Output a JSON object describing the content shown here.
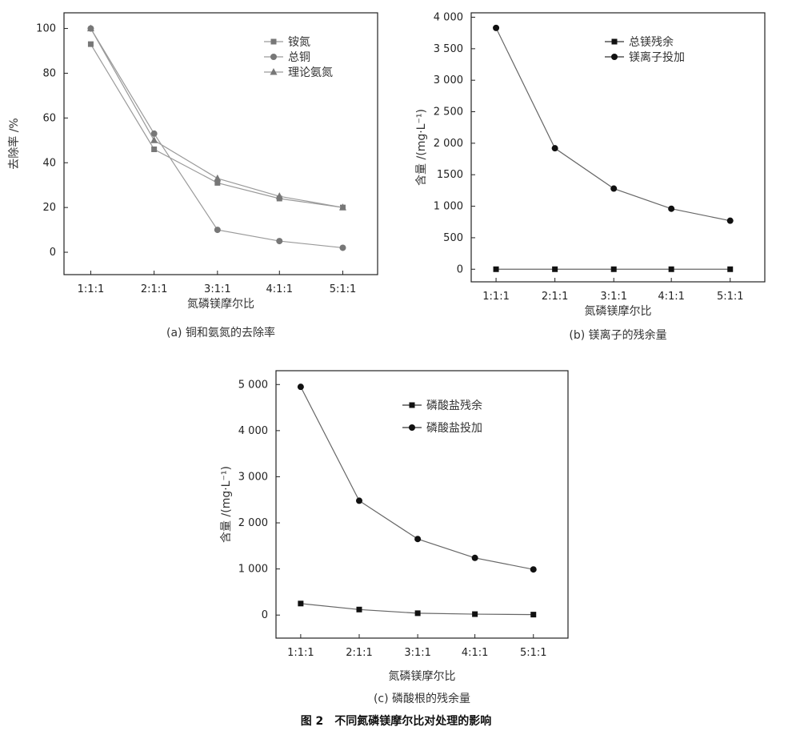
{
  "figure_caption": "图 2　不同氮磷镁摩尔比对处理的影响",
  "chart_data": [
    {
      "id": "a",
      "type": "line",
      "caption": "(a) 铜和氨氮的去除率",
      "xlabel": "氮磷镁摩尔比",
      "ylabel": "去除率 /%",
      "categories": [
        "1:1:1",
        "2:1:1",
        "3:1:1",
        "4:1:1",
        "5:1:1"
      ],
      "ylim": [
        -10,
        107
      ],
      "yticks": [
        0,
        20,
        40,
        60,
        80,
        100
      ],
      "ytick_labels": [
        "0",
        "20",
        "40",
        "60",
        "80",
        "100"
      ],
      "legend_position": "top-right",
      "series": [
        {
          "name": "铵氮",
          "marker": "square",
          "color": "#777777",
          "values": [
            93,
            46,
            31,
            24,
            20
          ]
        },
        {
          "name": "总铜",
          "marker": "circle",
          "color": "#777777",
          "values": [
            100,
            53,
            10,
            5,
            2
          ]
        },
        {
          "name": "理论氨氮",
          "marker": "triangle",
          "color": "#777777",
          "values": [
            100,
            50,
            33,
            25,
            20
          ]
        }
      ]
    },
    {
      "id": "b",
      "type": "line",
      "caption": "(b) 镁离子的残余量",
      "xlabel": "氮磷镁摩尔比",
      "ylabel": "含量 /(mg·L⁻¹)",
      "categories": [
        "1:1:1",
        "2:1:1",
        "3:1:1",
        "4:1:1",
        "5:1:1"
      ],
      "ylim": [
        -200,
        4070
      ],
      "yticks": [
        0,
        500,
        1000,
        1500,
        2000,
        2500,
        3000,
        3500,
        4000
      ],
      "ytick_labels": [
        "0",
        "500",
        "1 000",
        "1500",
        "2 000",
        "2 500",
        "3 000",
        "3 500",
        "4 000"
      ],
      "legend_position": "top-right",
      "series": [
        {
          "name": "总镁残余",
          "marker": "square",
          "color": "#111111",
          "values": [
            0,
            0,
            0,
            0,
            0
          ]
        },
        {
          "name": "镁离子投加",
          "marker": "circle",
          "color": "#111111",
          "values": [
            3830,
            1920,
            1280,
            960,
            770
          ]
        }
      ]
    },
    {
      "id": "c",
      "type": "line",
      "caption": "(c) 磷酸根的残余量",
      "xlabel": "氮磷镁摩尔比",
      "ylabel": "含量 /(mg·L⁻¹)",
      "categories": [
        "1:1:1",
        "2:1:1",
        "3:1:1",
        "4:1:1",
        "5:1:1"
      ],
      "ylim": [
        -500,
        5300
      ],
      "yticks": [
        0,
        1000,
        2000,
        3000,
        4000,
        5000
      ],
      "ytick_labels": [
        "0",
        "1 000",
        "2 000",
        "3 000",
        "4 000",
        "5 000"
      ],
      "legend_position": "top-right",
      "series": [
        {
          "name": "磷酸盐残余",
          "marker": "square",
          "color": "#111111",
          "values": [
            250,
            120,
            40,
            20,
            10
          ]
        },
        {
          "name": "磷酸盐投加",
          "marker": "circle",
          "color": "#111111",
          "values": [
            4950,
            2480,
            1650,
            1240,
            990
          ]
        }
      ]
    }
  ]
}
